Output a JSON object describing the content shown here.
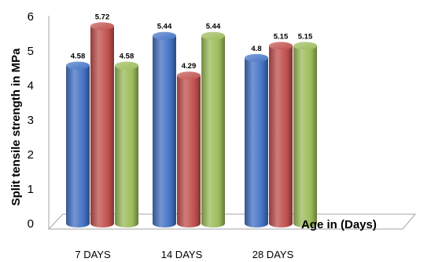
{
  "chart_data": {
    "type": "bar",
    "categories": [
      "7 DAYS",
      "14 DAYS",
      "28 DAYS"
    ],
    "series": [
      {
        "values": [
          4.58,
          5.44,
          4.8
        ],
        "color": "#4472c4"
      },
      {
        "values": [
          5.72,
          4.29,
          5.15
        ],
        "color": "#c0504d"
      },
      {
        "values": [
          4.58,
          5.44,
          5.15
        ],
        "color": "#9bbb59"
      }
    ],
    "data_labels": [
      [
        "4.58",
        "5.44",
        "4.8"
      ],
      [
        "5.72",
        "4.29",
        "5.15"
      ],
      [
        "4.58",
        "5.44",
        "5.15"
      ]
    ],
    "ylim": [
      0,
      6
    ],
    "yticks": [
      0,
      1,
      2,
      3,
      4,
      5,
      6
    ],
    "ylabel": "Split tensile strength in MPa",
    "xlabel": "Age in (Days)",
    "style": "3d-cylinder",
    "grid": false,
    "legend": "none"
  }
}
